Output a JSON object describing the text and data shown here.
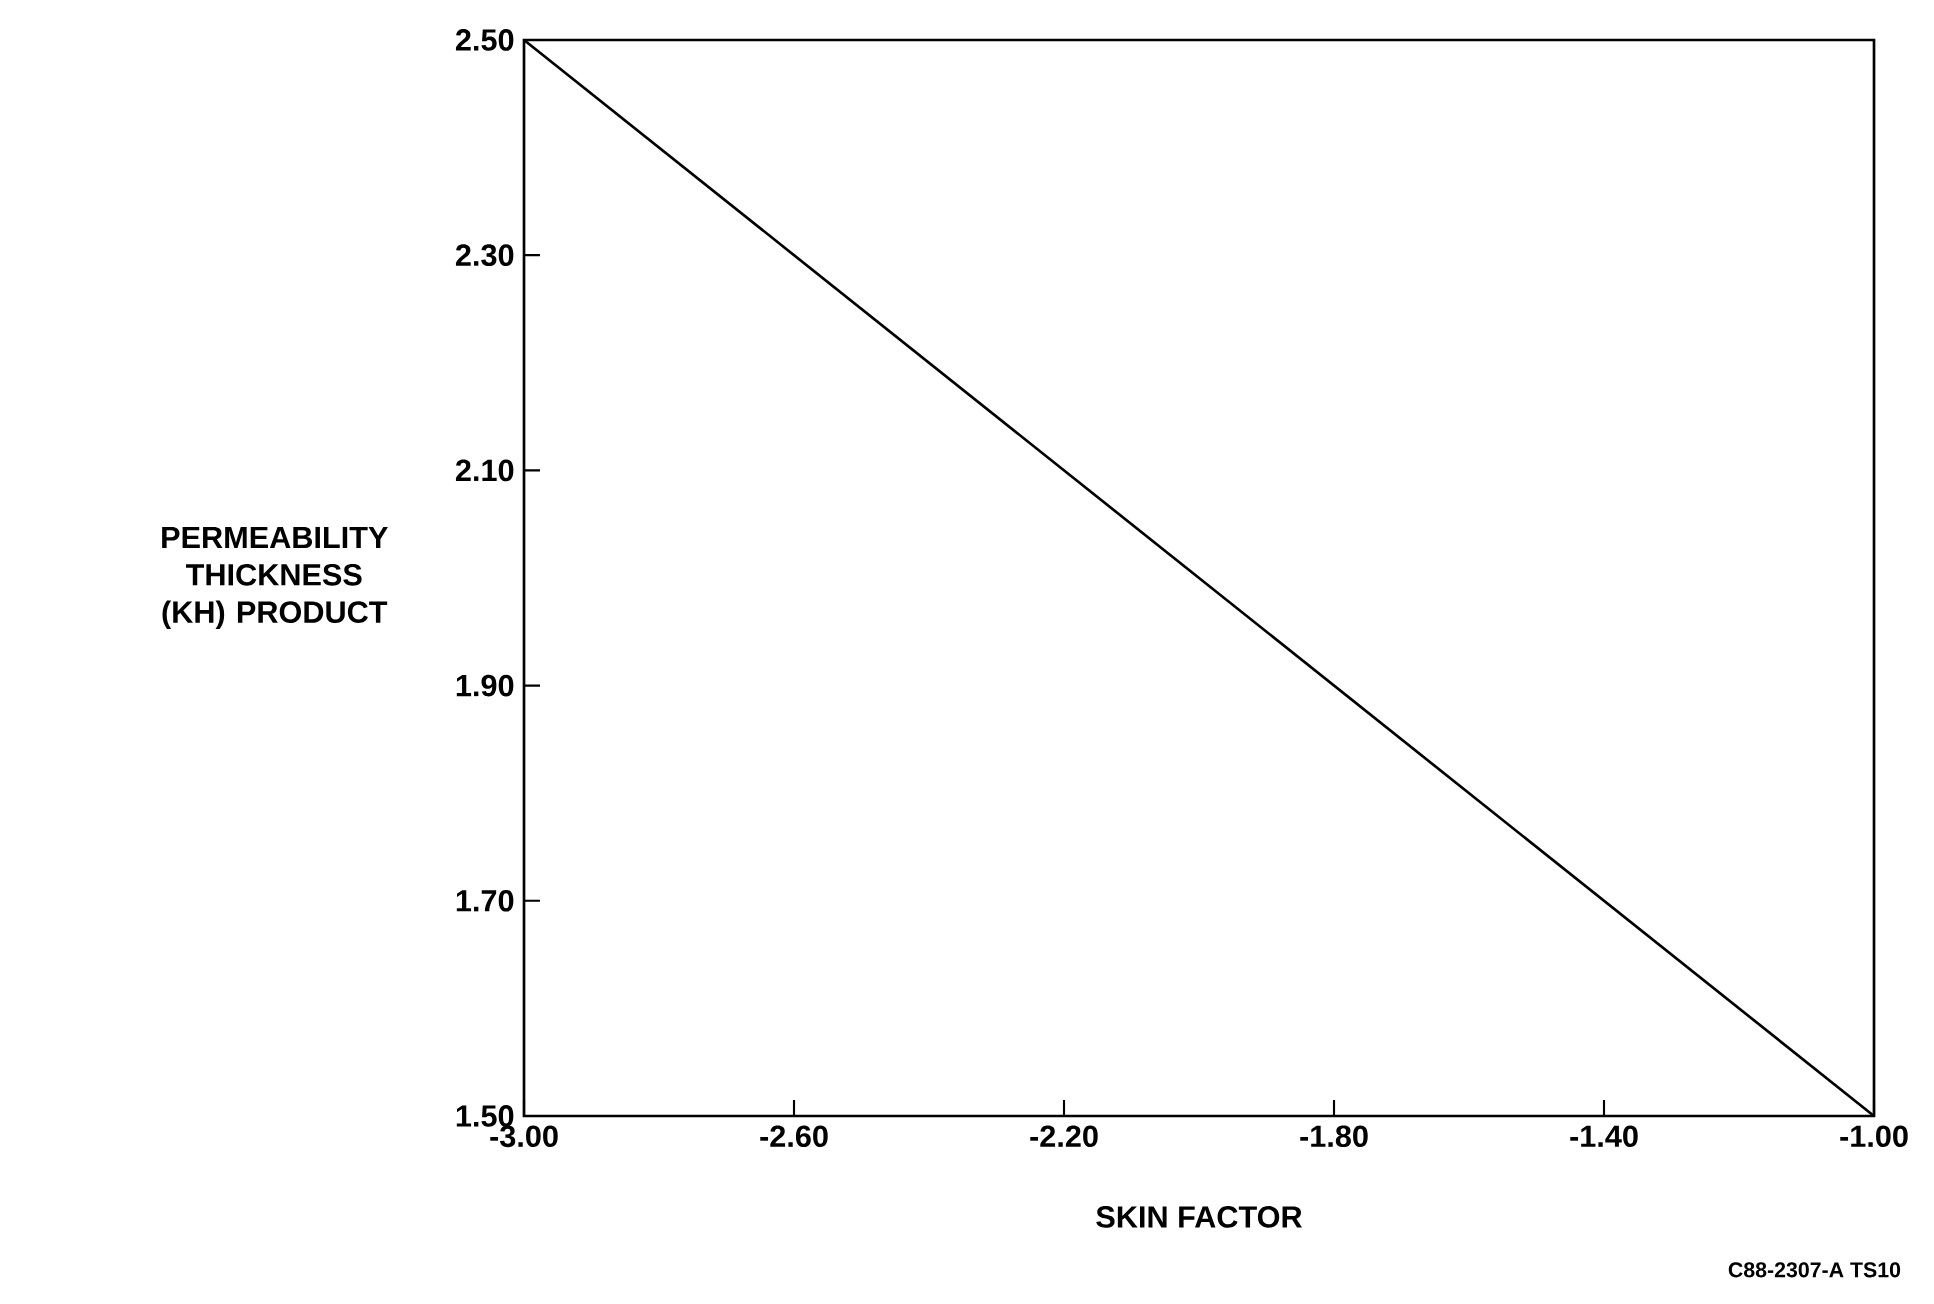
{
  "chart_data": {
    "type": "line",
    "xlabel": "SKIN FACTOR",
    "ylabel": "PERMEABILITY THICKNESS (KH) PRODUCT",
    "x": [
      -3.0,
      -1.0
    ],
    "series": [
      {
        "color": "#000000",
        "values": [
          2.5,
          1.5
        ]
      }
    ],
    "xlim": [
      -3.0,
      -1.0
    ],
    "ylim": [
      1.5,
      2.5
    ],
    "xticks": [
      {
        "value": -3.0,
        "label": "-3.00"
      },
      {
        "value": -2.6,
        "label": "-2.60"
      },
      {
        "value": -2.2,
        "label": "-2.20"
      },
      {
        "value": -1.8,
        "label": "-1.80"
      },
      {
        "value": -1.4,
        "label": "-1.40"
      },
      {
        "value": -1.0,
        "label": "-1.00"
      }
    ],
    "yticks": [
      {
        "value": 1.5,
        "label": "1.50"
      },
      {
        "value": 1.7,
        "label": "1.70"
      },
      {
        "value": 1.9,
        "label": "1.90"
      },
      {
        "value": 2.1,
        "label": "2.10"
      },
      {
        "value": 2.3,
        "label": "2.30"
      },
      {
        "value": 2.5,
        "label": "2.50"
      }
    ],
    "annotations": [
      "C88-2307-A  TS10"
    ]
  }
}
